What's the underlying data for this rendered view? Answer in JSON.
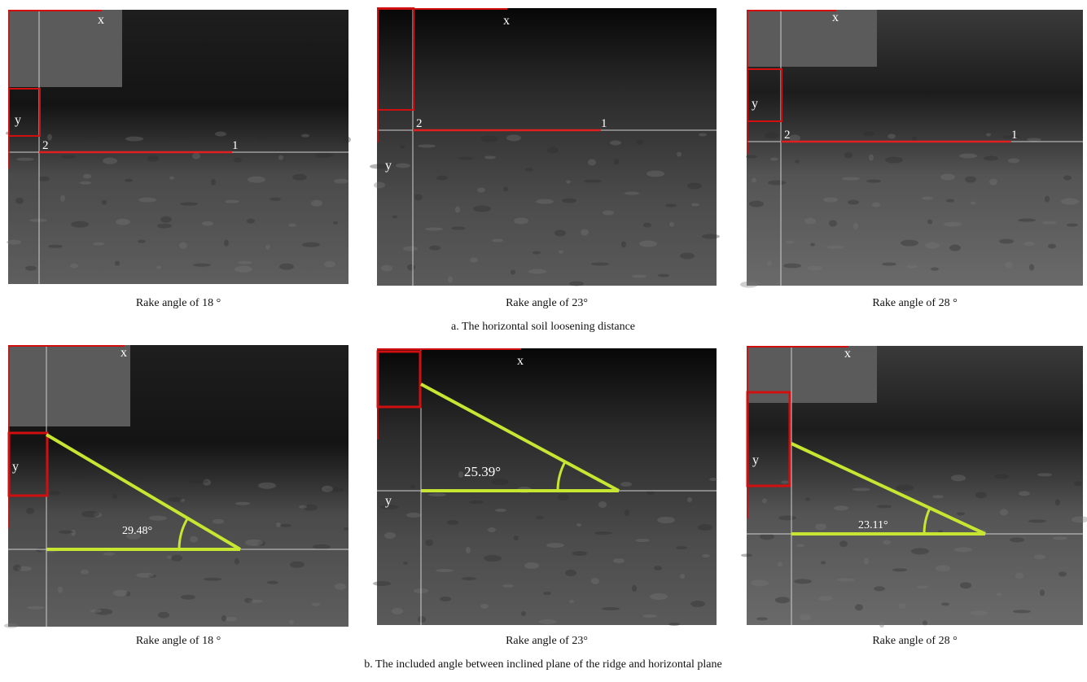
{
  "rows": [
    {
      "panels": [
        {
          "caption": "Rake angle of 18 °",
          "x_label": "x",
          "y_label": "y",
          "point_labels": [
            "2",
            "1"
          ]
        },
        {
          "caption": "Rake angle of 23°",
          "x_label": "x",
          "y_label": "y",
          "point_labels": [
            "2",
            "1"
          ]
        },
        {
          "caption": "Rake angle of 28 °",
          "x_label": "x",
          "y_label": "y",
          "point_labels": [
            "2",
            "1"
          ]
        }
      ],
      "caption": "a. The horizontal soil loosening distance"
    },
    {
      "panels": [
        {
          "caption": "Rake angle of 18 °",
          "x_label": "x",
          "y_label": "y",
          "angle": "29.48°"
        },
        {
          "caption": "Rake angle of 23°",
          "x_label": "x",
          "y_label": "y",
          "angle": "25.39°"
        },
        {
          "caption": "Rake angle of 28 °",
          "x_label": "x",
          "y_label": "y",
          "angle": "23.11°"
        }
      ],
      "caption": "b. The included angle between inclined plane of the ridge and horizontal plane"
    }
  ]
}
